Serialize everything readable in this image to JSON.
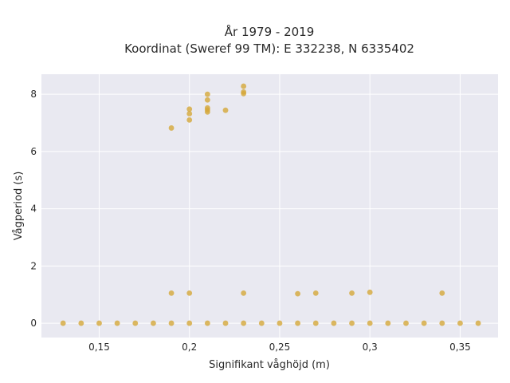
{
  "chart_data": {
    "type": "scatter",
    "title_lines": [
      "År 1979 - 2019",
      "Koordinat (Sweref 99 TM): E 332238, N 6335402"
    ],
    "xlabel": "Signifikant våghöjd (m)",
    "ylabel": "Vågperiod (s)",
    "xlim": [
      0.118,
      0.371
    ],
    "ylim": [
      -0.5,
      8.7
    ],
    "xticks": [
      0.15,
      0.2,
      0.25,
      0.3,
      0.35
    ],
    "xtick_labels": [
      "0,15",
      "0,2",
      "0,25",
      "0,3",
      "0,35"
    ],
    "yticks": [
      0,
      2,
      4,
      6,
      8
    ],
    "ytick_labels": [
      "0",
      "2",
      "4",
      "6",
      "8"
    ],
    "grid": true,
    "plot_background": "#e9e9f1",
    "grid_color": "#ffffff",
    "marker_color": "#d4a73a",
    "points": [
      {
        "x": 0.13,
        "y": 0
      },
      {
        "x": 0.14,
        "y": 0
      },
      {
        "x": 0.15,
        "y": 0
      },
      {
        "x": 0.16,
        "y": 0
      },
      {
        "x": 0.17,
        "y": 0
      },
      {
        "x": 0.18,
        "y": 0
      },
      {
        "x": 0.19,
        "y": 0
      },
      {
        "x": 0.2,
        "y": 0
      },
      {
        "x": 0.21,
        "y": 0
      },
      {
        "x": 0.22,
        "y": 0
      },
      {
        "x": 0.23,
        "y": 0
      },
      {
        "x": 0.24,
        "y": 0
      },
      {
        "x": 0.25,
        "y": 0
      },
      {
        "x": 0.26,
        "y": 0
      },
      {
        "x": 0.27,
        "y": 0
      },
      {
        "x": 0.28,
        "y": 0
      },
      {
        "x": 0.29,
        "y": 0
      },
      {
        "x": 0.3,
        "y": 0
      },
      {
        "x": 0.31,
        "y": 0
      },
      {
        "x": 0.32,
        "y": 0
      },
      {
        "x": 0.33,
        "y": 0
      },
      {
        "x": 0.34,
        "y": 0
      },
      {
        "x": 0.35,
        "y": 0
      },
      {
        "x": 0.36,
        "y": 0
      },
      {
        "x": 0.19,
        "y": 1.05
      },
      {
        "x": 0.2,
        "y": 1.05
      },
      {
        "x": 0.23,
        "y": 1.05
      },
      {
        "x": 0.26,
        "y": 1.03
      },
      {
        "x": 0.27,
        "y": 1.05
      },
      {
        "x": 0.29,
        "y": 1.05
      },
      {
        "x": 0.3,
        "y": 1.08
      },
      {
        "x": 0.34,
        "y": 1.05
      },
      {
        "x": 0.19,
        "y": 6.82
      },
      {
        "x": 0.2,
        "y": 7.1
      },
      {
        "x": 0.2,
        "y": 7.32
      },
      {
        "x": 0.2,
        "y": 7.48
      },
      {
        "x": 0.21,
        "y": 7.38
      },
      {
        "x": 0.21,
        "y": 7.45
      },
      {
        "x": 0.21,
        "y": 7.52
      },
      {
        "x": 0.21,
        "y": 7.8
      },
      {
        "x": 0.21,
        "y": 8.0
      },
      {
        "x": 0.22,
        "y": 7.44
      },
      {
        "x": 0.23,
        "y": 8.02
      },
      {
        "x": 0.23,
        "y": 8.08
      },
      {
        "x": 0.23,
        "y": 8.28
      }
    ]
  }
}
